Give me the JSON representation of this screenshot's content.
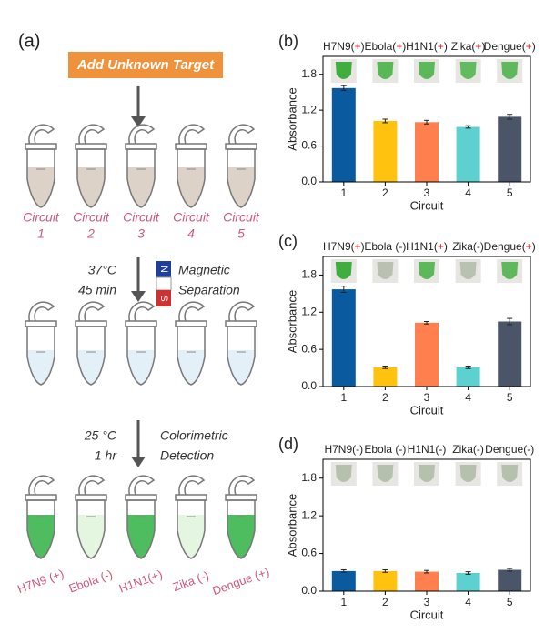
{
  "schematic": {
    "label": "(a)",
    "step1": "Add Unknown Target",
    "circuits": [
      {
        "name": "Circuit",
        "number": "1"
      },
      {
        "name": "Circuit",
        "number": "2"
      },
      {
        "name": "Circuit",
        "number": "3"
      },
      {
        "name": "Circuit",
        "number": "4"
      },
      {
        "name": "Circuit",
        "number": "5"
      }
    ],
    "condition1": [
      "37°C",
      "45 min"
    ],
    "magnet": [
      "N",
      "S"
    ],
    "step2": [
      "Magnetic",
      "Separation"
    ],
    "condition2": [
      "25 °C",
      "1 hr"
    ],
    "step3": [
      "Colorimetric",
      "Detection"
    ],
    "results": [
      "H7N9 (+)",
      "Ebola (-)",
      "H1N1(+)",
      "Zika (-)",
      "Dengue (+)"
    ]
  },
  "chart_data": [
    {
      "type": "bar",
      "panel_label": "(b)",
      "top_labels": [
        "H7N9(+)",
        "Ebola(+)",
        "H1N1(+)",
        "Zika(+)",
        "Dengue(+)"
      ],
      "tube_colors": [
        "#3fae3f",
        "#59b755",
        "#5cb85a",
        "#63bb60",
        "#5fb95c"
      ],
      "categories": [
        "1",
        "2",
        "3",
        "4",
        "5"
      ],
      "values": [
        1.57,
        1.02,
        1.0,
        0.92,
        1.09
      ],
      "errors": [
        0.04,
        0.03,
        0.03,
        0.02,
        0.04
      ],
      "colors": [
        "#0a5aa0",
        "#ffc20e",
        "#ff7f4f",
        "#5dd0d0",
        "#4a5568"
      ],
      "x_label": "Circuit",
      "y_label": "Absorbance",
      "ylim": [
        0,
        2.1
      ],
      "yticks": [
        {
          "value": 0,
          "label": "0.0"
        },
        0.6,
        1.2,
        1.8
      ]
    },
    {
      "type": "bar",
      "panel_label": "(c)",
      "top_labels": [
        "H7N9(+)",
        "Ebola (-)",
        "H1N1(+)",
        "Zika(-)",
        "Dengue(+)"
      ],
      "tube_colors": [
        "#3fae3f",
        "#b9c2b2",
        "#5cb85a",
        "#b9c2b2",
        "#5fb95c"
      ],
      "categories": [
        "1",
        "2",
        "3",
        "4",
        "5"
      ],
      "values": [
        1.57,
        0.31,
        1.03,
        0.31,
        1.05
      ],
      "errors": [
        0.05,
        0.02,
        0.02,
        0.02,
        0.05
      ],
      "colors": [
        "#0a5aa0",
        "#ffc20e",
        "#ff7f4f",
        "#5dd0d0",
        "#4a5568"
      ],
      "x_label": "Circuit",
      "y_label": "Absorbance",
      "ylim": [
        0,
        2.1
      ],
      "yticks": [
        {
          "value": 0,
          "label": "0.0"
        },
        0.6,
        1.2,
        1.8
      ]
    },
    {
      "type": "bar",
      "panel_label": "(d)",
      "top_labels": [
        "H7N9(-)",
        "Ebola (-)",
        "H1N1(-)",
        "Zika(-)",
        "Dengue(-)"
      ],
      "tube_colors": [
        "#b5c0ad",
        "#b5c0ad",
        "#b5c0ad",
        "#b5c0ad",
        "#b5c0ad"
      ],
      "categories": [
        "1",
        "2",
        "3",
        "4",
        "5"
      ],
      "values": [
        0.32,
        0.32,
        0.31,
        0.29,
        0.34
      ],
      "errors": [
        0.02,
        0.02,
        0.02,
        0.02,
        0.02
      ],
      "colors": [
        "#0a5aa0",
        "#ffc20e",
        "#ff7f4f",
        "#5dd0d0",
        "#4a5568"
      ],
      "x_label": "Circuit",
      "y_label": "Absorbance",
      "ylim": [
        0,
        2.1
      ],
      "yticks": [
        {
          "value": 0,
          "label": "0.0"
        },
        0.6,
        1.2,
        1.8
      ]
    }
  ]
}
